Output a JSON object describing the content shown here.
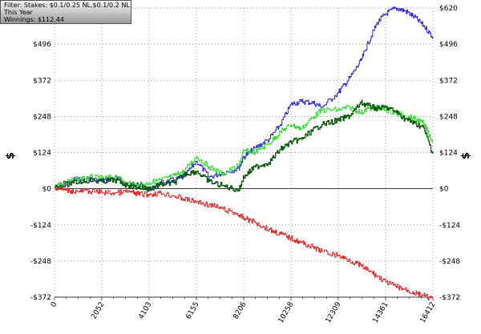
{
  "info_box": {
    "filter": "Filter: Stakes: $0.1/0.25 NL,$0.1/0.2 NL",
    "period": "This Year",
    "winnings": "Winnings: $112.44"
  },
  "colors": {
    "blue": "#2c2cd6",
    "light_green": "#33dd33",
    "dark_green": "#0b5a0b",
    "red": "#dd2c2c",
    "grid": "#7a7a7a"
  },
  "chart_data": {
    "type": "line",
    "ylabel": "$",
    "ylim": [
      -372,
      620
    ],
    "xlim": [
      0,
      16412
    ],
    "y_ticks": [
      -372,
      -248,
      -124,
      0,
      124,
      248,
      372,
      496,
      620
    ],
    "y_tick_labels": [
      "-$372",
      "-$248",
      "-$124",
      "$0",
      "$124",
      "$248",
      "$372",
      "$496",
      "$620"
    ],
    "x_ticks": [
      0,
      2052,
      4103,
      6155,
      8206,
      10258,
      12309,
      14361,
      16412
    ],
    "x_tick_labels": [
      "0",
      "2052",
      "4103",
      "6155",
      "8206",
      "10258",
      "12309",
      "14361",
      "16412"
    ],
    "grid": true,
    "series": [
      {
        "color": "#2c2cd6",
        "x": [
          0,
          800,
          1500,
          2052,
          2600,
          3200,
          3600,
          4103,
          4600,
          5200,
          5600,
          6155,
          6700,
          7300,
          8000,
          8206,
          8700,
          9300,
          9800,
          10258,
          10700,
          11200,
          11600,
          12309,
          12800,
          13300,
          13600,
          14000,
          14361,
          14800,
          15200,
          15600,
          16000,
          16412
        ],
        "y": [
          5,
          30,
          35,
          25,
          40,
          10,
          20,
          -5,
          20,
          30,
          40,
          95,
          40,
          55,
          70,
          110,
          140,
          170,
          220,
          290,
          300,
          295,
          280,
          330,
          380,
          440,
          500,
          570,
          600,
          620,
          610,
          590,
          560,
          520
        ]
      },
      {
        "color": "#33dd33",
        "x": [
          0,
          800,
          1500,
          2052,
          2600,
          3200,
          3600,
          4103,
          4600,
          5200,
          5600,
          6155,
          6700,
          7300,
          8000,
          8206,
          8700,
          9300,
          9800,
          10258,
          10700,
          11200,
          11600,
          12309,
          12800,
          13300,
          13600,
          14000,
          14361,
          14800,
          15200,
          15600,
          16000,
          16412
        ],
        "y": [
          10,
          30,
          40,
          35,
          40,
          20,
          10,
          20,
          30,
          45,
          60,
          110,
          75,
          50,
          80,
          130,
          125,
          155,
          195,
          220,
          205,
          245,
          270,
          270,
          280,
          260,
          275,
          280,
          270,
          260,
          250,
          240,
          225,
          160
        ]
      },
      {
        "color": "#0b5a0b",
        "x": [
          0,
          800,
          1500,
          2052,
          2600,
          3200,
          3600,
          4103,
          4600,
          5200,
          5600,
          6155,
          6700,
          7300,
          8000,
          8206,
          8700,
          9300,
          9800,
          10258,
          10700,
          11200,
          11600,
          12309,
          12800,
          13300,
          13600,
          14000,
          14361,
          14800,
          15200,
          15600,
          16000,
          16412
        ],
        "y": [
          5,
          20,
          30,
          25,
          30,
          10,
          5,
          0,
          15,
          20,
          50,
          60,
          25,
          10,
          -5,
          40,
          75,
          90,
          135,
          160,
          170,
          200,
          220,
          235,
          250,
          295,
          285,
          275,
          280,
          265,
          240,
          225,
          210,
          120
        ]
      },
      {
        "color": "#dd2c2c",
        "x": [
          0,
          500,
          1000,
          1500,
          2052,
          2600,
          3200,
          3600,
          4103,
          4600,
          5200,
          5600,
          6155,
          6700,
          7300,
          8000,
          8206,
          8700,
          9300,
          9800,
          10258,
          10700,
          11200,
          11600,
          12309,
          12800,
          13300,
          13600,
          14000,
          14361,
          14800,
          15200,
          15600,
          16000,
          16412
        ],
        "y": [
          0,
          -5,
          -10,
          -8,
          -12,
          -15,
          -10,
          -18,
          -20,
          -15,
          -25,
          -35,
          -45,
          -55,
          -70,
          -90,
          -100,
          -115,
          -140,
          -155,
          -170,
          -185,
          -200,
          -215,
          -230,
          -245,
          -265,
          -280,
          -300,
          -320,
          -335,
          -345,
          -358,
          -366,
          -380
        ]
      }
    ]
  }
}
